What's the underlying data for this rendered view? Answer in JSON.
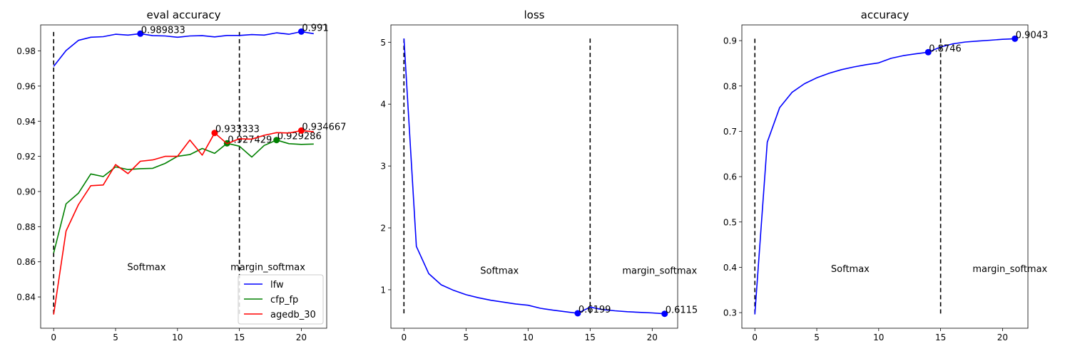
{
  "chart_data": [
    {
      "type": "line",
      "title": "eval accuracy",
      "xlabel": "",
      "ylabel": "",
      "xlim": [
        -1.05,
        22.05
      ],
      "ylim": [
        0.8222,
        0.9948
      ],
      "xticks": [
        0,
        5,
        10,
        15,
        20
      ],
      "yticks": [
        0.84,
        0.86,
        0.88,
        0.9,
        0.92,
        0.94,
        0.96,
        0.98
      ],
      "ytick_labels": [
        "0.84",
        "0.86",
        "0.88",
        "0.90",
        "0.92",
        "0.94",
        "0.96",
        "0.98"
      ],
      "legend": "bottom-right",
      "series": [
        {
          "name": "lfw",
          "color": "#0000ff",
          "x": [
            0,
            1,
            2,
            3,
            4,
            5,
            6,
            7,
            8,
            9,
            10,
            11,
            12,
            13,
            14,
            15,
            16,
            17,
            18,
            19,
            20,
            21
          ],
          "y": [
            0.9712,
            0.9802,
            0.986,
            0.9878,
            0.9881,
            0.9895,
            0.989,
            0.989833,
            0.9887,
            0.9885,
            0.9878,
            0.9885,
            0.9887,
            0.988,
            0.9888,
            0.9888,
            0.9893,
            0.989,
            0.9903,
            0.9895,
            0.991,
            0.9898
          ],
          "best": {
            "x": 7,
            "y": 0.989833,
            "label": "0.989833"
          },
          "final": {
            "x": 20,
            "y": 0.991,
            "label": "0.991"
          }
        },
        {
          "name": "cfp_fp",
          "color": "#008000",
          "x": [
            0,
            1,
            2,
            3,
            4,
            5,
            6,
            7,
            8,
            9,
            10,
            11,
            12,
            13,
            14,
            15,
            16,
            17,
            18,
            19,
            20,
            21
          ],
          "y": [
            0.865,
            0.893,
            0.899,
            0.91,
            0.9085,
            0.914,
            0.9125,
            0.913,
            0.9132,
            0.916,
            0.92,
            0.921,
            0.9245,
            0.9217,
            0.927429,
            0.9258,
            0.9196,
            0.9262,
            0.929286,
            0.9272,
            0.9268,
            0.927
          ],
          "best": {
            "x": 14,
            "y": 0.927429,
            "label": "0.927429"
          },
          "final": {
            "x": 18,
            "y": 0.929286,
            "label": "0.929286"
          }
        },
        {
          "name": "agedb_30",
          "color": "#ff0000",
          "x": [
            0,
            1,
            2,
            3,
            4,
            5,
            6,
            7,
            8,
            9,
            10,
            11,
            12,
            13,
            14,
            15,
            16,
            17,
            18,
            19,
            20,
            21
          ],
          "y": [
            0.83,
            0.8775,
            0.8925,
            0.9033,
            0.9037,
            0.9153,
            0.9102,
            0.9172,
            0.918,
            0.92,
            0.92,
            0.9293,
            0.9207,
            0.933333,
            0.9272,
            0.93,
            0.9298,
            0.932,
            0.9335,
            0.9333,
            0.934667,
            0.934
          ],
          "best": {
            "x": 13,
            "y": 0.933333,
            "label": "0.933333"
          },
          "final": {
            "x": 20,
            "y": 0.934667,
            "label": "0.934667"
          }
        }
      ],
      "vlines": [
        0,
        15
      ],
      "vline_range": [
        0.83,
        0.9908
      ],
      "annotations": [
        {
          "text": "Softmax",
          "x": 7.5,
          "y": 0.857
        },
        {
          "text": "margin_softmax",
          "x": 17.3,
          "y": 0.857
        }
      ]
    },
    {
      "type": "line",
      "title": "loss",
      "xlabel": "",
      "ylabel": "",
      "xlim": [
        -1.05,
        22.05
      ],
      "ylim": [
        0.378,
        5.28
      ],
      "xticks": [
        0,
        5,
        10,
        15,
        20
      ],
      "yticks": [
        1,
        2,
        3,
        4,
        5
      ],
      "ytick_labels": [
        "1",
        "2",
        "3",
        "4",
        "5"
      ],
      "series": [
        {
          "name": "",
          "color": "#0000ff",
          "x": [
            0,
            1,
            2,
            3,
            4,
            5,
            6,
            7,
            8,
            9,
            10,
            11,
            12,
            13,
            14,
            15,
            16,
            17,
            18,
            19,
            20,
            21
          ],
          "y": [
            5.06,
            1.7,
            1.26,
            1.08,
            0.99,
            0.92,
            0.87,
            0.83,
            0.8,
            0.77,
            0.75,
            0.7,
            0.67,
            0.645,
            0.6199,
            0.72,
            0.68,
            0.66,
            0.645,
            0.635,
            0.625,
            0.6115
          ],
          "best": {
            "x": 14,
            "y": 0.6199,
            "label": "0.6199"
          },
          "final": {
            "x": 21,
            "y": 0.6115,
            "label": "0.6115"
          }
        }
      ],
      "vlines": [
        0,
        15
      ],
      "vline_range": [
        0.6115,
        5.06
      ],
      "annotations": [
        {
          "text": "Softmax",
          "x": 7.7,
          "y": 1.31
        },
        {
          "text": "margin_softmax",
          "x": 20.6,
          "y": 1.31
        }
      ]
    },
    {
      "type": "line",
      "title": "accuracy",
      "xlabel": "",
      "ylabel": "",
      "xlim": [
        -1.05,
        22.05
      ],
      "ylim": [
        0.2656,
        0.9347
      ],
      "xticks": [
        0,
        5,
        10,
        15,
        20
      ],
      "yticks": [
        0.3,
        0.4,
        0.5,
        0.6,
        0.7,
        0.8,
        0.9
      ],
      "ytick_labels": [
        "0.3",
        "0.4",
        "0.5",
        "0.6",
        "0.7",
        "0.8",
        "0.9"
      ],
      "series": [
        {
          "name": "",
          "color": "#0000ff",
          "x": [
            0,
            1,
            2,
            3,
            4,
            5,
            6,
            7,
            8,
            9,
            10,
            11,
            12,
            13,
            14,
            15,
            16,
            17,
            18,
            19,
            20,
            21
          ],
          "y": [
            0.296,
            0.676,
            0.752,
            0.786,
            0.805,
            0.818,
            0.828,
            0.836,
            0.842,
            0.847,
            0.851,
            0.861,
            0.867,
            0.871,
            0.8746,
            0.886,
            0.893,
            0.897,
            0.899,
            0.901,
            0.903,
            0.9043
          ],
          "best": {
            "x": 14,
            "y": 0.8746,
            "label": "0.8746"
          },
          "final": {
            "x": 21,
            "y": 0.9043,
            "label": "0.9043"
          }
        }
      ],
      "vlines": [
        0,
        15
      ],
      "vline_range": [
        0.296,
        0.9043
      ],
      "annotations": [
        {
          "text": "Softmax",
          "x": 7.7,
          "y": 0.397
        },
        {
          "text": "margin_softmax",
          "x": 20.6,
          "y": 0.397
        }
      ]
    }
  ]
}
